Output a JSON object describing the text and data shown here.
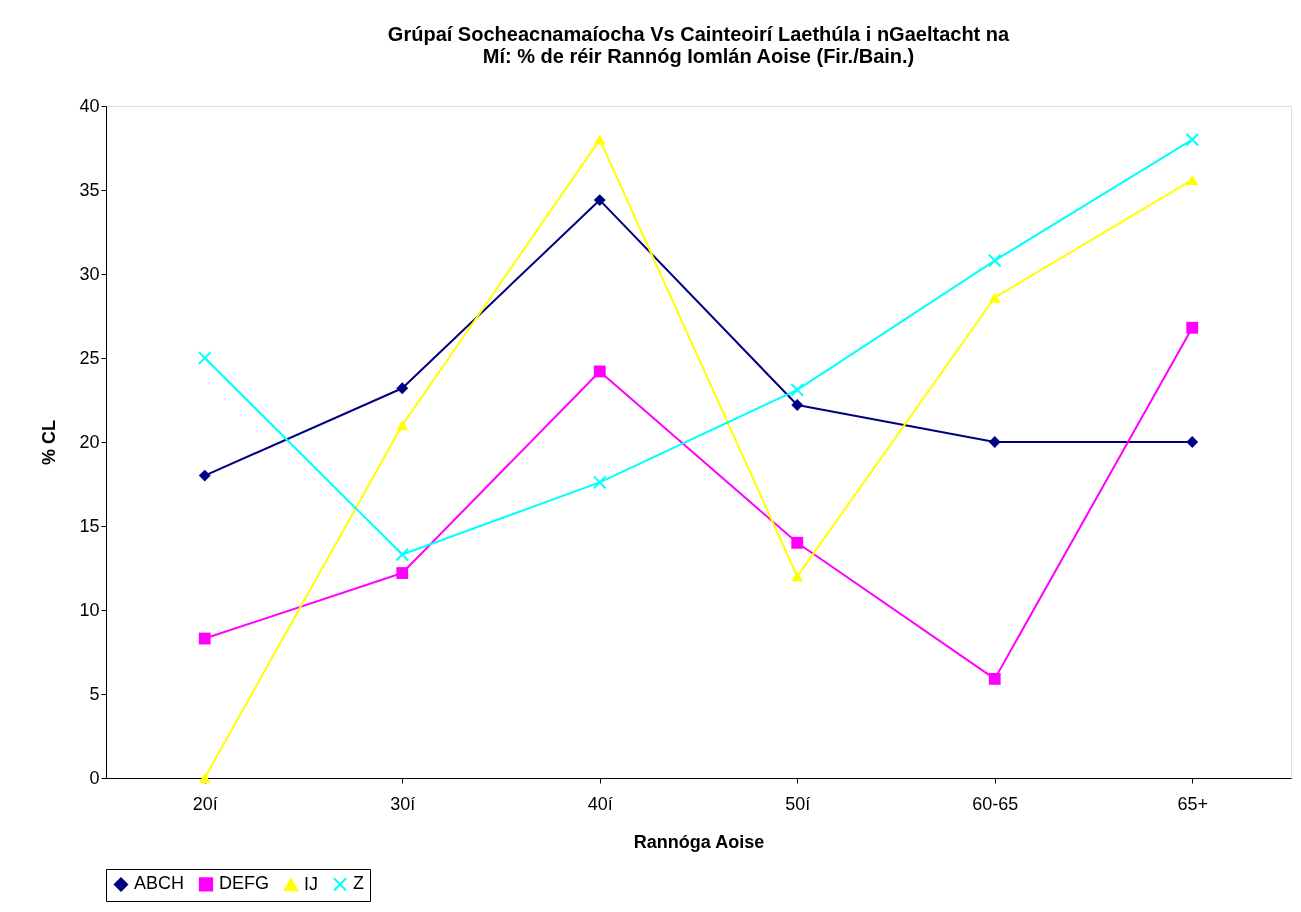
{
  "chart_data": {
    "type": "line",
    "title": "Grúpaí Socheacnamaíocha Vs Cainteoirí Laethúla i nGaeltacht na\nMí: % de réir Rannóg Iomlán Aoise (Fir./Bain.)",
    "xlabel": "Rannóga Aoise",
    "ylabel": "% CL",
    "categories": [
      "20í",
      "30í",
      "40í",
      "50í",
      "60-65",
      "65+"
    ],
    "series": [
      {
        "name": "ABCH",
        "color": "#000080",
        "marker": "diamond",
        "values": [
          18,
          23.2,
          34.4,
          22.2,
          20,
          20
        ]
      },
      {
        "name": "DEFG",
        "color": "#ff00ff",
        "marker": "square",
        "values": [
          8.3,
          12.2,
          24.2,
          14,
          5.9,
          26.8
        ]
      },
      {
        "name": "IJ",
        "color": "#ffff00",
        "marker": "triangle",
        "values": [
          0,
          21,
          38,
          12,
          28.6,
          35.6
        ]
      },
      {
        "name": "Z",
        "color": "#00ffff",
        "marker": "cross",
        "values": [
          25,
          13.3,
          17.6,
          23.1,
          30.8,
          38
        ]
      }
    ],
    "ylim": [
      0,
      40
    ],
    "yticks": [
      0,
      5,
      10,
      15,
      20,
      25,
      30,
      35,
      40
    ],
    "grid": false,
    "legend": "bottom",
    "line_style": "solid"
  }
}
